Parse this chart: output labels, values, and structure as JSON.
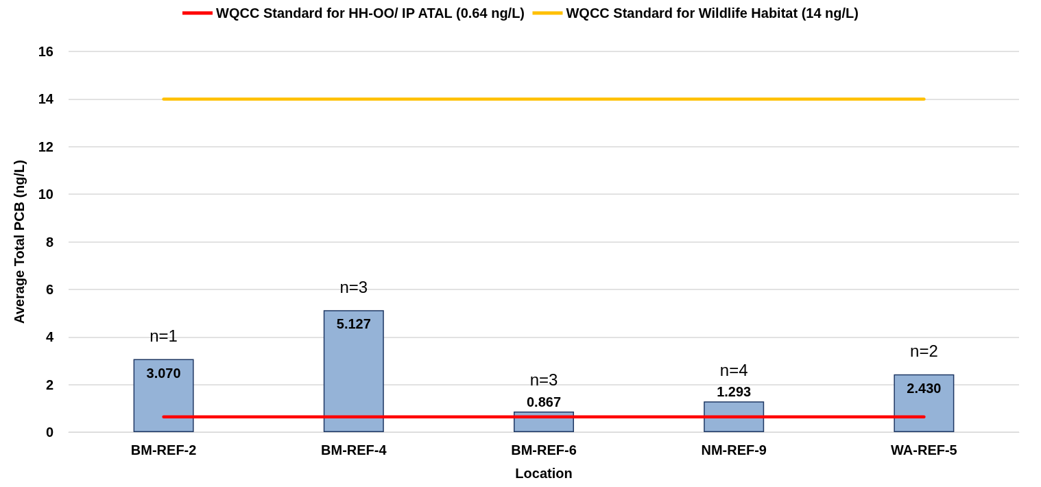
{
  "chart_data": {
    "type": "bar",
    "xlabel": "Location",
    "ylabel": "Average Total PCB (ng/L)",
    "categories": [
      "BM-REF-2",
      "BM-REF-4",
      "BM-REF-6",
      "NM-REF-9",
      "WA-REF-5"
    ],
    "series": [
      {
        "color": "#95b3d7",
        "values": [
          3.07,
          5.127,
          0.867,
          1.293,
          2.43
        ],
        "value_labels": [
          "3.070",
          "5.127",
          "0.867",
          "1.293",
          "2.430"
        ]
      },
      {
        "type": "line",
        "name": "WQCC Standard for HH-OO/ IP ATAL (0.64 ng/L)",
        "color": "#ff0000",
        "values": [
          0.64,
          0.64,
          0.64,
          0.64,
          0.64
        ]
      },
      {
        "type": "line",
        "name": "WQCC Standard for Wildlife Habitat (14 ng/L)",
        "color": "#ffc000",
        "values": [
          14,
          14,
          14,
          14,
          14
        ]
      }
    ],
    "annotations": [
      {
        "text": "n=1",
        "x": "BM-REF-2",
        "y": 3.07
      },
      {
        "text": "n=3",
        "x": "BM-REF-4",
        "y": 5.127
      },
      {
        "text": "n=3",
        "x": "BM-REF-6",
        "y": 0.867
      },
      {
        "text": "n=4",
        "x": "NM-REF-9",
        "y": 1.293
      },
      {
        "text": "n=2",
        "x": "WA-REF-5",
        "y": 2.43
      }
    ],
    "ylim": [
      0,
      16
    ],
    "yticks": [
      0,
      2,
      4,
      6,
      8,
      10,
      12,
      14,
      16
    ],
    "grid": "y",
    "legend": "top",
    "marker": "none",
    "line_style": "solid"
  }
}
